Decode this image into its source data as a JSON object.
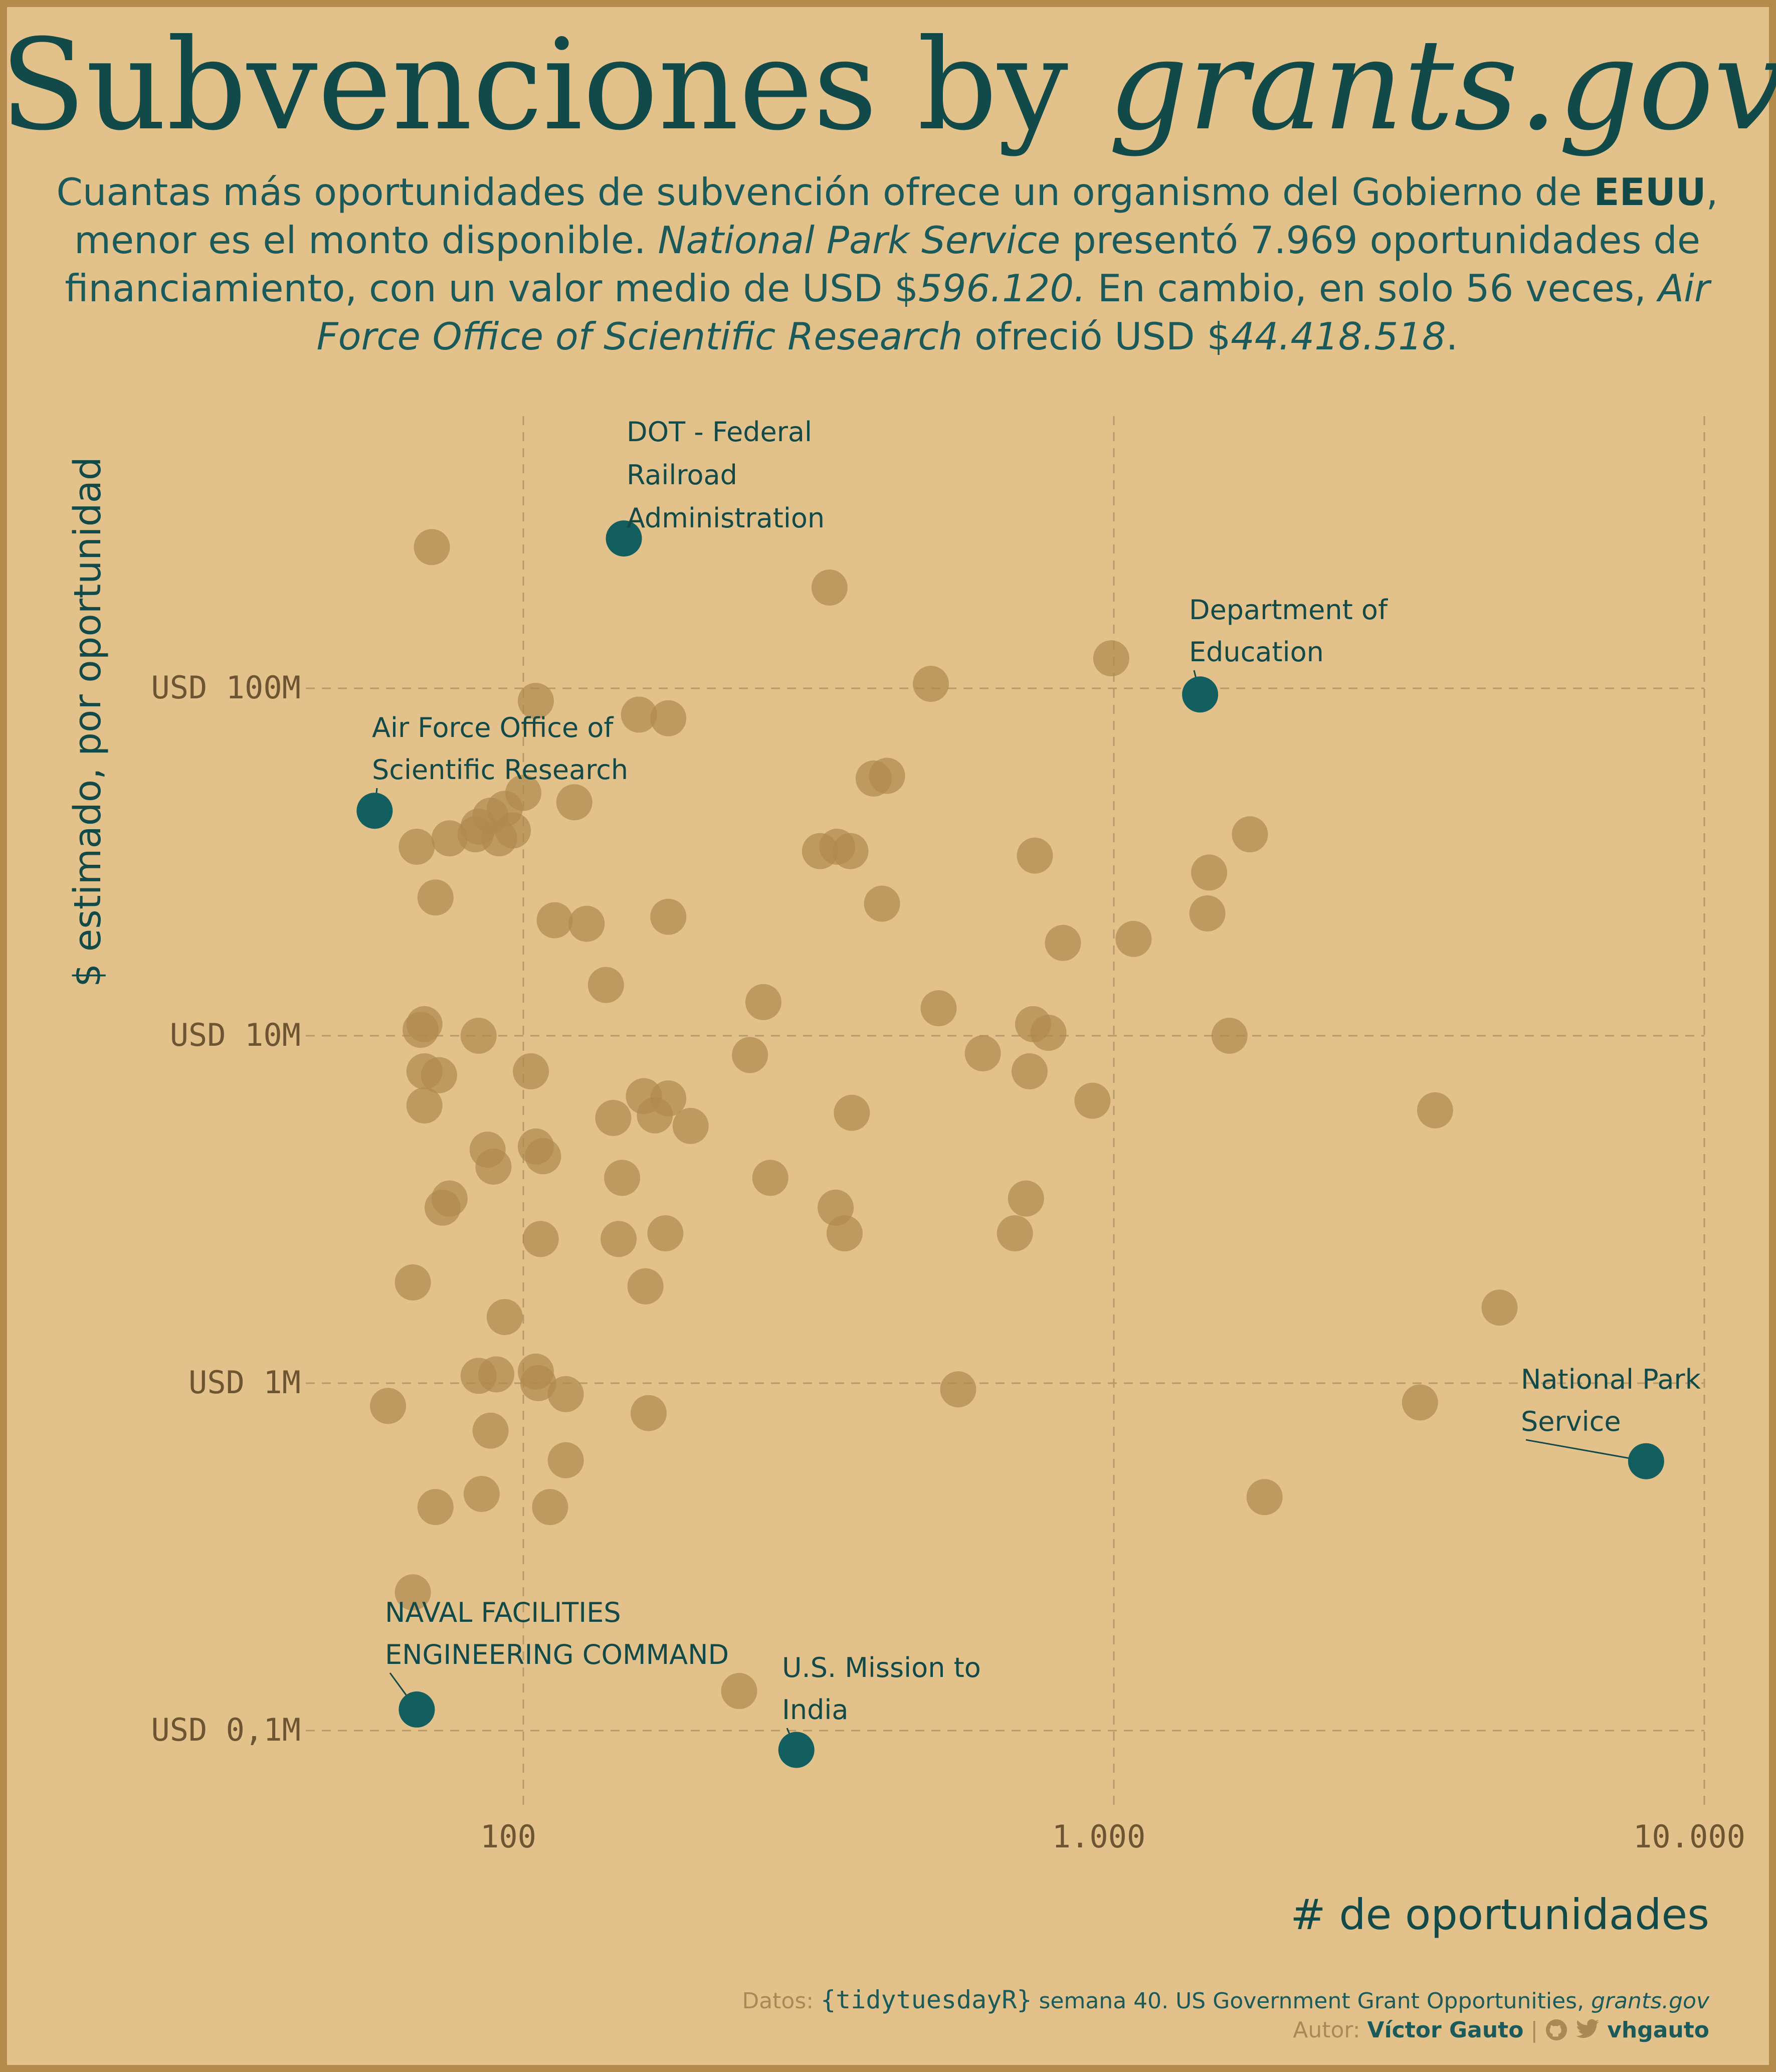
{
  "title": {
    "main": "Subvenciones by ",
    "italic": "grants.gov"
  },
  "subtitle": {
    "t1": "Cuantas más oportunidades de subvención ofrece un organismo del Gobierno de ",
    "b1": "EEUU",
    "t2": ", menor es el monto disponible. ",
    "i1": "National Park Service",
    "t3": " presentó 7.969 oportunidades de financiamiento, con un valor medio de USD $",
    "i2": "596.120.",
    "t4": " En cambio, en solo 56 veces, ",
    "i3": "Air Force Office of Scientific Research",
    "t5": " ofreció USD $",
    "i4": "44.418.518",
    "t6": "."
  },
  "colors": {
    "background": "#e2c18b",
    "frame": "#b58b4b",
    "point": "#b0894f",
    "highlight": "#135f5f",
    "text": "#114a48"
  },
  "caption": {
    "line1_prefix": "Datos: ",
    "line1_mono": "{tidytuesdayR}",
    "line1_text": " semana 40. US Government Grant Opportunities, ",
    "line1_italic": "grants.gov",
    "line2_prefix": "Autor: ",
    "line2_author": "Víctor Gauto",
    "line2_sep": " | ",
    "line2_icons": [
      "github-icon",
      "twitter-icon"
    ],
    "line2_handle": "vhgauto"
  },
  "chart_data": {
    "type": "scatter",
    "xlabel": "# de oportunidades",
    "ylabel": "$ estimado, por oportunidad",
    "xscale": "log10",
    "yscale": "log10",
    "xlim": [
      36,
      10000
    ],
    "ylim": [
      55000,
      500000000
    ],
    "xticks": [
      {
        "value": 100,
        "label": "100"
      },
      {
        "value": 1000,
        "label": "1.000"
      },
      {
        "value": 10000,
        "label": "10.000"
      }
    ],
    "yticks": [
      {
        "value": 100000,
        "label": "USD 0,1M"
      },
      {
        "value": 1000000,
        "label": "USD 1M"
      },
      {
        "value": 10000000,
        "label": "USD 10M"
      },
      {
        "value": 100000000,
        "label": "USD 100M"
      }
    ],
    "grid": true,
    "highlighted": [
      {
        "name": "DOT - Federal Railroad Administration",
        "label_lines": [
          "DOT - Federal",
          "Railroad",
          "Administration"
        ],
        "x": 148,
        "y": 270000000
      },
      {
        "name": "Department of Education",
        "label_lines": [
          "Department of",
          "Education"
        ],
        "x": 1400,
        "y": 96000000
      },
      {
        "name": "Air Force Office of Scientific Research",
        "label_lines": [
          "Air Force Office of",
          "Scientific Research"
        ],
        "x": 56,
        "y": 44418518
      },
      {
        "name": "National Park Service",
        "label_lines": [
          "National Park",
          "Service"
        ],
        "x": 7969,
        "y": 596120
      },
      {
        "name": "NAVAL FACILITIES ENGINEERING COMMAND",
        "label_lines": [
          "NAVAL FACILITIES",
          "ENGINEERING COMMAND"
        ],
        "x": 66,
        "y": 115000
      },
      {
        "name": "U.S. Mission to India",
        "label_lines": [
          "U.S. Mission to",
          "India"
        ],
        "x": 290,
        "y": 88000
      }
    ],
    "points": [
      {
        "x": 70,
        "y": 255000000
      },
      {
        "x": 330,
        "y": 195000000
      },
      {
        "x": 990,
        "y": 122000000
      },
      {
        "x": 490,
        "y": 103000000
      },
      {
        "x": 105,
        "y": 92000000
      },
      {
        "x": 157,
        "y": 84000000
      },
      {
        "x": 176,
        "y": 82000000
      },
      {
        "x": 392,
        "y": 55000000
      },
      {
        "x": 413,
        "y": 56000000
      },
      {
        "x": 100,
        "y": 50000000
      },
      {
        "x": 122,
        "y": 47000000
      },
      {
        "x": 93,
        "y": 45000000
      },
      {
        "x": 88,
        "y": 43000000
      },
      {
        "x": 84,
        "y": 40000000
      },
      {
        "x": 96,
        "y": 39000000
      },
      {
        "x": 83,
        "y": 38000000
      },
      {
        "x": 91,
        "y": 37000000
      },
      {
        "x": 75,
        "y": 37000000
      },
      {
        "x": 66,
        "y": 35000000
      },
      {
        "x": 340,
        "y": 35000000
      },
      {
        "x": 318,
        "y": 34000000
      },
      {
        "x": 358,
        "y": 34000000
      },
      {
        "x": 735,
        "y": 33000000
      },
      {
        "x": 1700,
        "y": 38000000
      },
      {
        "x": 1450,
        "y": 29500000
      },
      {
        "x": 71,
        "y": 25000000
      },
      {
        "x": 405,
        "y": 24000000
      },
      {
        "x": 1440,
        "y": 22500000
      },
      {
        "x": 113,
        "y": 21500000
      },
      {
        "x": 128,
        "y": 21000000
      },
      {
        "x": 176,
        "y": 22000000
      },
      {
        "x": 820,
        "y": 18500000
      },
      {
        "x": 1080,
        "y": 19000000
      },
      {
        "x": 138,
        "y": 14000000
      },
      {
        "x": 255,
        "y": 12500000
      },
      {
        "x": 505,
        "y": 12000000
      },
      {
        "x": 68,
        "y": 10800000
      },
      {
        "x": 67,
        "y": 10400000
      },
      {
        "x": 84,
        "y": 10000000
      },
      {
        "x": 730,
        "y": 10800000
      },
      {
        "x": 775,
        "y": 10200000
      },
      {
        "x": 1570,
        "y": 10000000
      },
      {
        "x": 242,
        "y": 8800000
      },
      {
        "x": 600,
        "y": 8900000
      },
      {
        "x": 103,
        "y": 7900000
      },
      {
        "x": 68,
        "y": 7900000
      },
      {
        "x": 72,
        "y": 7700000
      },
      {
        "x": 720,
        "y": 7900000
      },
      {
        "x": 160,
        "y": 6700000
      },
      {
        "x": 176,
        "y": 6600000
      },
      {
        "x": 68,
        "y": 6300000
      },
      {
        "x": 142,
        "y": 5800000
      },
      {
        "x": 167,
        "y": 5900000
      },
      {
        "x": 192,
        "y": 5500000
      },
      {
        "x": 360,
        "y": 6000000
      },
      {
        "x": 920,
        "y": 6500000
      },
      {
        "x": 3500,
        "y": 6100000
      },
      {
        "x": 105,
        "y": 4800000
      },
      {
        "x": 108,
        "y": 4500000
      },
      {
        "x": 87,
        "y": 4700000
      },
      {
        "x": 89,
        "y": 4200000
      },
      {
        "x": 147,
        "y": 3900000
      },
      {
        "x": 262,
        "y": 3900000
      },
      {
        "x": 75,
        "y": 3400000
      },
      {
        "x": 73,
        "y": 3200000
      },
      {
        "x": 710,
        "y": 3400000
      },
      {
        "x": 338,
        "y": 3200000
      },
      {
        "x": 107,
        "y": 2600000
      },
      {
        "x": 145,
        "y": 2600000
      },
      {
        "x": 174,
        "y": 2700000
      },
      {
        "x": 350,
        "y": 2700000
      },
      {
        "x": 680,
        "y": 2700000
      },
      {
        "x": 65,
        "y": 1950000
      },
      {
        "x": 161,
        "y": 1900000
      },
      {
        "x": 93,
        "y": 1550000
      },
      {
        "x": 4500,
        "y": 1650000
      },
      {
        "x": 84,
        "y": 1050000
      },
      {
        "x": 90,
        "y": 1060000
      },
      {
        "x": 105,
        "y": 1080000
      },
      {
        "x": 106,
        "y": 1000000
      },
      {
        "x": 118,
        "y": 930000
      },
      {
        "x": 545,
        "y": 960000
      },
      {
        "x": 59,
        "y": 860000
      },
      {
        "x": 163,
        "y": 820000
      },
      {
        "x": 3300,
        "y": 880000
      },
      {
        "x": 88,
        "y": 730000
      },
      {
        "x": 118,
        "y": 600000
      },
      {
        "x": 85,
        "y": 480000
      },
      {
        "x": 71,
        "y": 440000
      },
      {
        "x": 111,
        "y": 440000
      },
      {
        "x": 1800,
        "y": 470000
      },
      {
        "x": 65,
        "y": 250000
      },
      {
        "x": 232,
        "y": 130000
      }
    ]
  }
}
